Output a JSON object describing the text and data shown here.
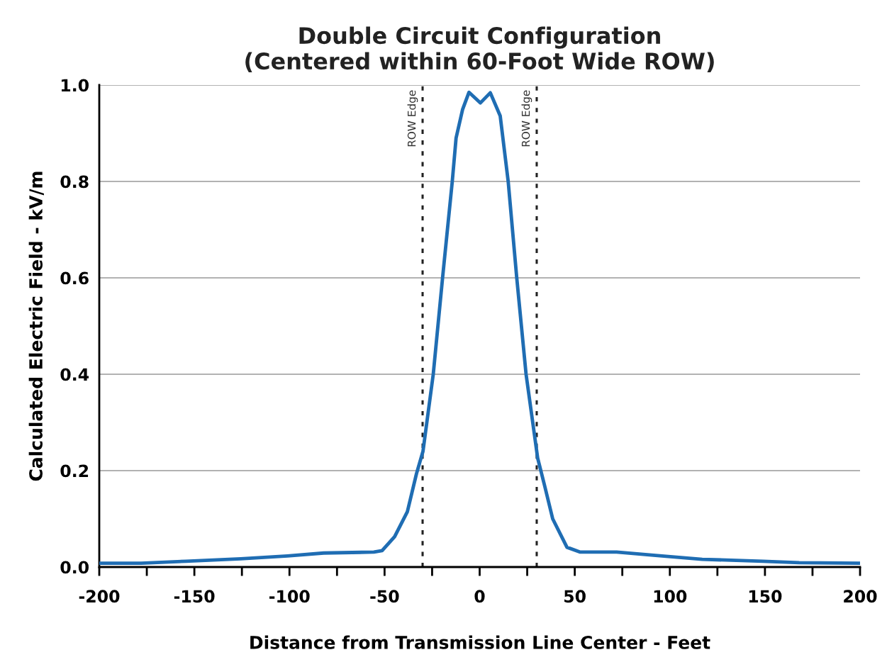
{
  "chart_data": {
    "type": "line",
    "title": "Double Circuit Configuration\n(Centered within 60-Foot Wide ROW)",
    "xlabel": "Distance from Transmission Line Center - Feet",
    "ylabel": "Calculated Electric Field - kV/m",
    "series": [
      {
        "color": "#1f6db3",
        "x": [
          -200,
          -178,
          -154.5,
          -125.6,
          -101,
          -82,
          -55.6,
          -51.3,
          -44.7,
          -38,
          -33.2,
          -29.8,
          -24.4,
          -19.5,
          -14.4,
          -12.4,
          -9,
          -5.6,
          0.4,
          5.6,
          10.8,
          15,
          19.5,
          24.4,
          30.5,
          34.2,
          38.4,
          45.9,
          52.9,
          72,
          92.5,
          117,
          149,
          168,
          200
        ],
        "values": [
          0.008,
          0.008,
          0.012,
          0.017,
          0.023,
          0.029,
          0.031,
          0.034,
          0.063,
          0.115,
          0.194,
          0.24,
          0.4,
          0.6,
          0.8,
          0.89,
          0.949,
          0.985,
          0.963,
          0.984,
          0.936,
          0.8,
          0.6,
          0.4,
          0.226,
          0.168,
          0.1,
          0.041,
          0.031,
          0.031,
          0.024,
          0.016,
          0.012,
          0.009,
          0.008
        ]
      }
    ],
    "xlim": [
      -200,
      200
    ],
    "xticks": [
      -200,
      {
        "value": -175,
        "label": null
      },
      -150,
      {
        "value": -125,
        "label": null
      },
      -100,
      {
        "value": -75,
        "label": null
      },
      -50,
      {
        "value": -25,
        "label": null
      },
      0,
      {
        "value": 25,
        "label": null
      },
      50,
      {
        "value": 75,
        "label": null
      },
      100,
      {
        "value": 125,
        "label": null
      },
      150,
      {
        "value": 175,
        "label": null
      },
      200
    ],
    "ylim": [
      0,
      1.0
    ],
    "yticks": [
      {
        "value": 0,
        "label": "0.0"
      },
      {
        "value": 0.2,
        "label": "0.2"
      },
      {
        "value": 0.4,
        "label": "0.4"
      },
      {
        "value": 0.6,
        "label": "0.6"
      },
      {
        "value": 0.8,
        "label": "0.8"
      },
      {
        "value": 1.0,
        "label": "1.0"
      }
    ],
    "grid": "y",
    "legend": false,
    "marker": "none",
    "line_style": "solid",
    "ref_lines": [
      {
        "axis": "x",
        "value": -30,
        "label": "ROW Edge",
        "color": "#222222",
        "line_style": "dotted"
      },
      {
        "axis": "x",
        "value": 30,
        "label": "ROW Edge",
        "color": "#222222",
        "line_style": "dotted"
      }
    ]
  }
}
